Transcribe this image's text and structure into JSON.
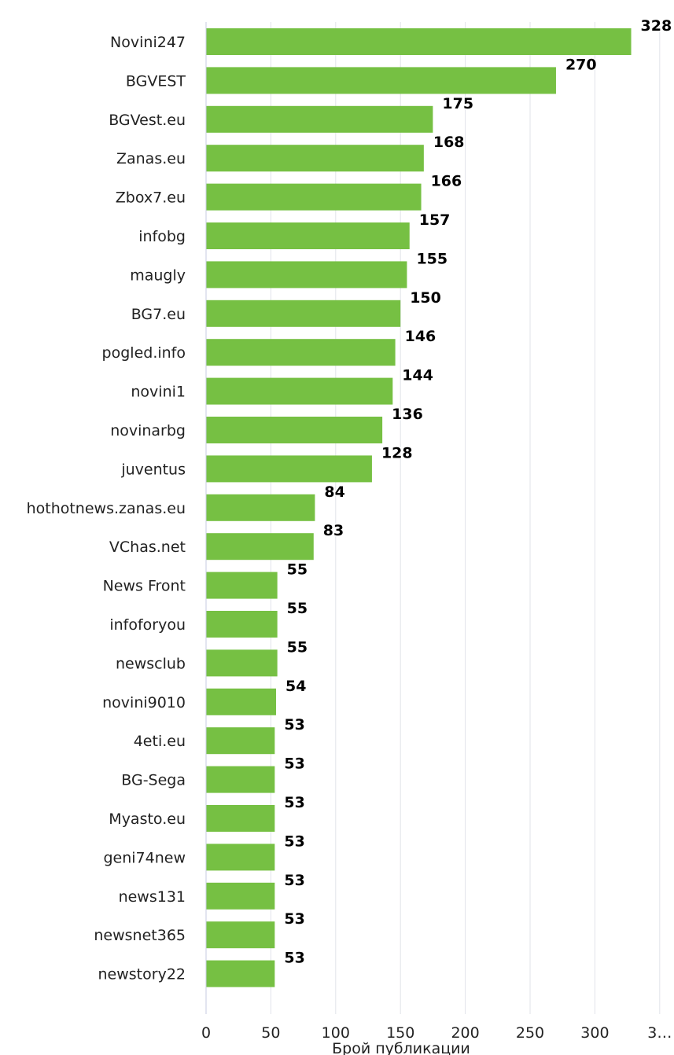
{
  "chart_data": {
    "type": "bar",
    "orientation": "horizontal",
    "categories": [
      "Novini247",
      "BGVEST",
      "BGVest.eu",
      "Zanas.eu",
      "Zbox7.eu",
      "infobg",
      "maugly",
      "BG7.eu",
      "pogled.info",
      "novini1",
      "novinarbg",
      "juventus",
      "hothotnews.zanas.eu",
      "VChas.net",
      "News Front",
      "infoforyou",
      "newsclub",
      "novini9010",
      "4eti.eu",
      "BG-Sega",
      "Myasto.eu",
      "geni74new",
      "news131",
      "newsnet365",
      "newstory22"
    ],
    "values": [
      328,
      270,
      175,
      168,
      166,
      157,
      155,
      150,
      146,
      144,
      136,
      128,
      84,
      83,
      55,
      55,
      55,
      54,
      53,
      53,
      53,
      53,
      53,
      53,
      53
    ],
    "x_ticks": [
      "0",
      "50",
      "100",
      "150",
      "200",
      "250",
      "300",
      "3…"
    ],
    "xlabel": "Брой публикации",
    "xlim": [
      0,
      350
    ],
    "grid": true,
    "bar_color": "#76c043"
  }
}
